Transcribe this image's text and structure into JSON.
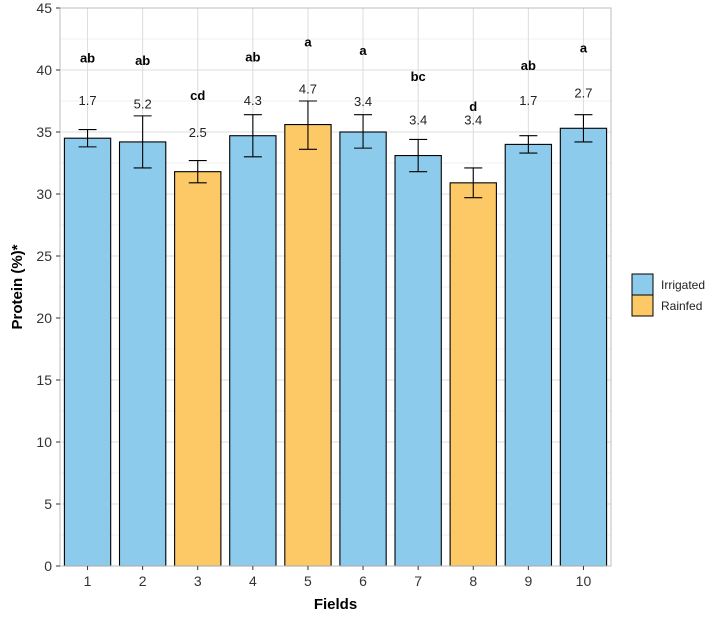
{
  "chart_data": {
    "type": "bar",
    "title": "",
    "xlabel": "Fields",
    "ylabel": "Protein (%)*",
    "ylim": [
      0,
      45
    ],
    "yticks": [
      0,
      5,
      10,
      15,
      20,
      25,
      30,
      35,
      40,
      45
    ],
    "categories": [
      "1",
      "2",
      "3",
      "4",
      "5",
      "6",
      "7",
      "8",
      "9",
      "10"
    ],
    "values": [
      34.5,
      34.2,
      31.8,
      34.7,
      35.6,
      35.0,
      33.1,
      30.9,
      34.0,
      35.3
    ],
    "error_low": [
      33.8,
      32.1,
      30.9,
      33.0,
      33.6,
      33.7,
      31.8,
      29.7,
      33.3,
      34.2
    ],
    "error_high": [
      35.2,
      36.3,
      32.7,
      36.4,
      37.5,
      36.4,
      34.4,
      32.1,
      34.7,
      36.4
    ],
    "groups": [
      "Irrigated",
      "Irrigated",
      "Rainfed",
      "Irrigated",
      "Rainfed",
      "Irrigated",
      "Irrigated",
      "Rainfed",
      "Irrigated",
      "Irrigated"
    ],
    "cv_labels": [
      "1.7",
      "5.2",
      "2.5",
      "4.3",
      "4.7",
      "3.4",
      "3.4",
      "3.4",
      "1.7",
      "2.7"
    ],
    "cv_label_y": [
      37.6,
      37.3,
      35.0,
      37.6,
      38.5,
      37.5,
      36.0,
      36.0,
      37.6,
      38.2
    ],
    "letters": [
      "ab",
      "ab",
      "cd",
      "ab",
      "a",
      "a",
      "bc",
      "d",
      "ab",
      "a"
    ],
    "letter_y": [
      41.0,
      40.8,
      38.0,
      41.1,
      42.3,
      41.6,
      39.5,
      37.1,
      40.4,
      41.8
    ],
    "legend": {
      "position": "right",
      "entries": [
        {
          "label": "Irrigated",
          "color": "#8DCBEC"
        },
        {
          "label": "Rainfed",
          "color": "#FCC966"
        }
      ]
    },
    "grid": true
  }
}
